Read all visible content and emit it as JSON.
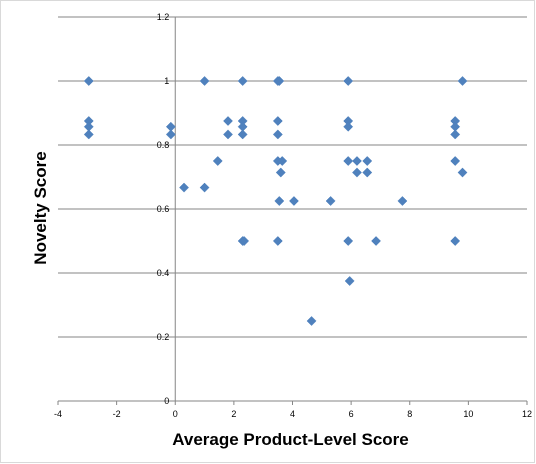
{
  "chart_data": {
    "type": "scatter",
    "title": "",
    "xlabel": "Average Product-Level Score",
    "ylabel": "Novelty Score",
    "xlim": [
      -4,
      12
    ],
    "ylim": [
      0,
      1.2
    ],
    "x_ticks": [
      -4,
      -2,
      0,
      2,
      4,
      6,
      8,
      10,
      12
    ],
    "y_ticks": [
      0,
      0.2,
      0.4,
      0.6,
      0.8,
      1,
      1.2
    ],
    "x_tick_labels": [
      "-4",
      "-2",
      "0",
      "2",
      "4",
      "6",
      "8",
      "10",
      "12"
    ],
    "y_tick_labels": [
      "0",
      "0.2",
      "0.4",
      "0.6",
      "0.8",
      "1",
      "1.2"
    ],
    "grid": "horizontal",
    "legend": "none",
    "marker": "diamond",
    "marker_color": "#4f81bd",
    "points": [
      [
        -2.95,
        1.0
      ],
      [
        -2.95,
        0.875
      ],
      [
        -2.95,
        0.857
      ],
      [
        -2.95,
        0.833
      ],
      [
        -0.15,
        0.857
      ],
      [
        -0.15,
        0.833
      ],
      [
        0.3,
        0.667
      ],
      [
        1.0,
        1.0
      ],
      [
        1.0,
        0.667
      ],
      [
        1.45,
        0.75
      ],
      [
        1.8,
        0.875
      ],
      [
        1.8,
        0.833
      ],
      [
        2.3,
        1.0
      ],
      [
        2.3,
        0.875
      ],
      [
        2.3,
        0.857
      ],
      [
        2.3,
        0.833
      ],
      [
        2.3,
        0.5
      ],
      [
        2.35,
        0.5
      ],
      [
        3.5,
        1.0
      ],
      [
        3.55,
        1.0
      ],
      [
        3.5,
        0.875
      ],
      [
        3.5,
        0.833
      ],
      [
        3.5,
        0.75
      ],
      [
        3.65,
        0.75
      ],
      [
        3.6,
        0.714
      ],
      [
        3.55,
        0.625
      ],
      [
        3.5,
        0.5
      ],
      [
        4.05,
        0.625
      ],
      [
        4.65,
        0.25
      ],
      [
        5.3,
        0.625
      ],
      [
        5.9,
        1.0
      ],
      [
        5.9,
        0.875
      ],
      [
        5.9,
        0.857
      ],
      [
        5.9,
        0.75
      ],
      [
        5.9,
        0.5
      ],
      [
        5.95,
        0.375
      ],
      [
        6.2,
        0.75
      ],
      [
        6.2,
        0.714
      ],
      [
        6.55,
        0.75
      ],
      [
        6.55,
        0.714
      ],
      [
        6.85,
        0.5
      ],
      [
        7.75,
        0.625
      ],
      [
        9.55,
        0.875
      ],
      [
        9.55,
        0.857
      ],
      [
        9.55,
        0.833
      ],
      [
        9.55,
        0.75
      ],
      [
        9.55,
        0.5
      ],
      [
        9.8,
        1.0
      ],
      [
        9.8,
        0.714
      ]
    ]
  }
}
